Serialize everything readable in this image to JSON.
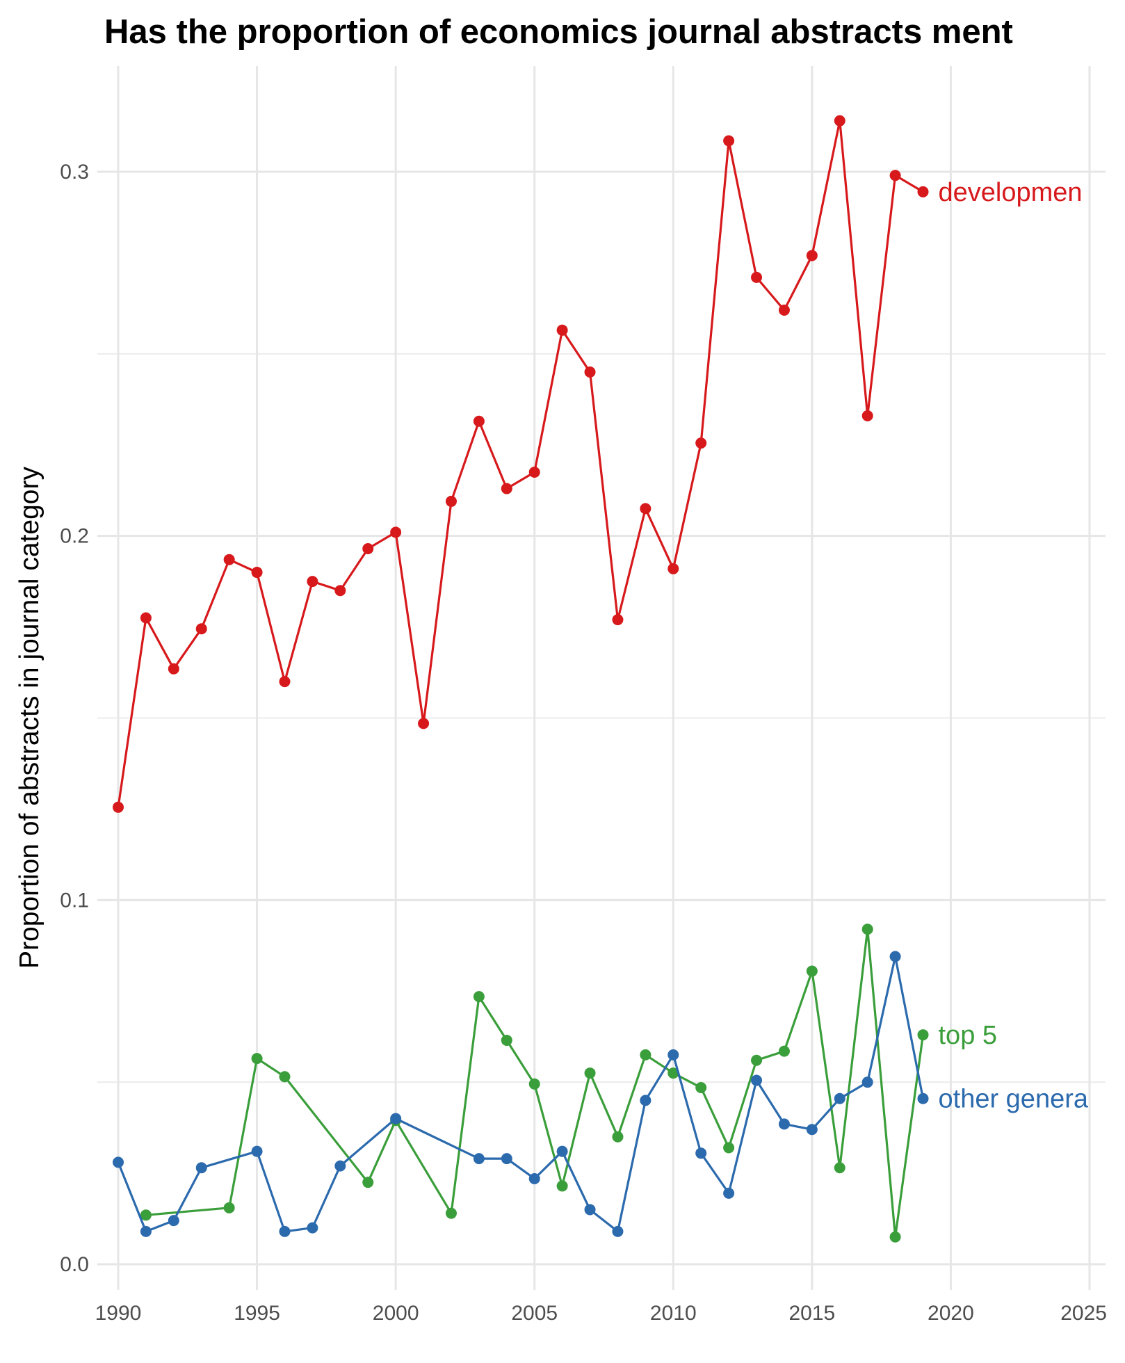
{
  "chart_data": {
    "type": "line",
    "title": "Has the proportion of economics journal abstracts ment",
    "xlabel": "",
    "ylabel": "Proportion of abstracts in journal category",
    "xlim": [
      1990,
      2025
    ],
    "ylim": [
      0.0,
      0.3
    ],
    "x_ticks": [
      1990,
      1995,
      2000,
      2005,
      2010,
      2015,
      2020,
      2025
    ],
    "y_ticks": [
      0.0,
      0.1,
      0.2,
      0.3
    ],
    "y_tick_labels": [
      "0.0",
      "0.1",
      "0.2",
      "0.3"
    ],
    "grid": true,
    "legend": "direct labels at line ends",
    "series": [
      {
        "name": "developmen",
        "color": "#d7191c",
        "points": [
          [
            1990,
            0.1255
          ],
          [
            1991,
            0.1775
          ],
          [
            1992,
            0.1635
          ],
          [
            1993,
            0.1745
          ],
          [
            1994,
            0.1935
          ],
          [
            1995,
            0.19
          ],
          [
            1996,
            0.16
          ],
          [
            1997,
            0.1875
          ],
          [
            1998,
            0.185
          ],
          [
            1999,
            0.1965
          ],
          [
            2000,
            0.201
          ],
          [
            2001,
            0.1485
          ],
          [
            2002,
            0.2095
          ],
          [
            2003,
            0.2315
          ],
          [
            2004,
            0.213
          ],
          [
            2005,
            0.2175
          ],
          [
            2006,
            0.2565
          ],
          [
            2007,
            0.245
          ],
          [
            2008,
            0.177
          ],
          [
            2009,
            0.2075
          ],
          [
            2010,
            0.191
          ],
          [
            2011,
            0.2255
          ],
          [
            2012,
            0.3085
          ],
          [
            2013,
            0.271
          ],
          [
            2014,
            0.262
          ],
          [
            2015,
            0.277
          ],
          [
            2016,
            0.314
          ],
          [
            2017,
            0.233
          ],
          [
            2018,
            0.299
          ],
          [
            2019,
            0.2945
          ]
        ]
      },
      {
        "name": "top 5",
        "color": "#3a9e3a",
        "points": [
          [
            1991,
            0.0135
          ],
          [
            1994,
            0.0155
          ],
          [
            1995,
            0.0565
          ],
          [
            1996,
            0.0515
          ],
          [
            1999,
            0.0225
          ],
          [
            2000,
            0.0395
          ],
          [
            2002,
            0.014
          ],
          [
            2003,
            0.0735
          ],
          [
            2004,
            0.0615
          ],
          [
            2005,
            0.0495
          ],
          [
            2006,
            0.0215
          ],
          [
            2007,
            0.0525
          ],
          [
            2008,
            0.035
          ],
          [
            2009,
            0.0575
          ],
          [
            2010,
            0.0525
          ],
          [
            2011,
            0.0485
          ],
          [
            2012,
            0.032
          ],
          [
            2013,
            0.056
          ],
          [
            2014,
            0.0585
          ],
          [
            2015,
            0.0805
          ],
          [
            2016,
            0.0265
          ],
          [
            2017,
            0.092
          ],
          [
            2018,
            0.0075
          ],
          [
            2019,
            0.063
          ]
        ]
      },
      {
        "name": "other genera",
        "color": "#2b6aad",
        "points": [
          [
            1990,
            0.028
          ],
          [
            1991,
            0.009
          ],
          [
            1992,
            0.012
          ],
          [
            1993,
            0.0265
          ],
          [
            1995,
            0.031
          ],
          [
            1996,
            0.009
          ],
          [
            1997,
            0.01
          ],
          [
            1998,
            0.027
          ],
          [
            2000,
            0.04
          ],
          [
            2003,
            0.029
          ],
          [
            2004,
            0.029
          ],
          [
            2005,
            0.0235
          ],
          [
            2006,
            0.031
          ],
          [
            2007,
            0.015
          ],
          [
            2008,
            0.009
          ],
          [
            2009,
            0.045
          ],
          [
            2010,
            0.0575
          ],
          [
            2011,
            0.0305
          ],
          [
            2012,
            0.0195
          ],
          [
            2013,
            0.0505
          ],
          [
            2014,
            0.0385
          ],
          [
            2015,
            0.037
          ],
          [
            2016,
            0.0455
          ],
          [
            2017,
            0.05
          ],
          [
            2018,
            0.0845
          ],
          [
            2019,
            0.0455
          ]
        ]
      }
    ]
  }
}
